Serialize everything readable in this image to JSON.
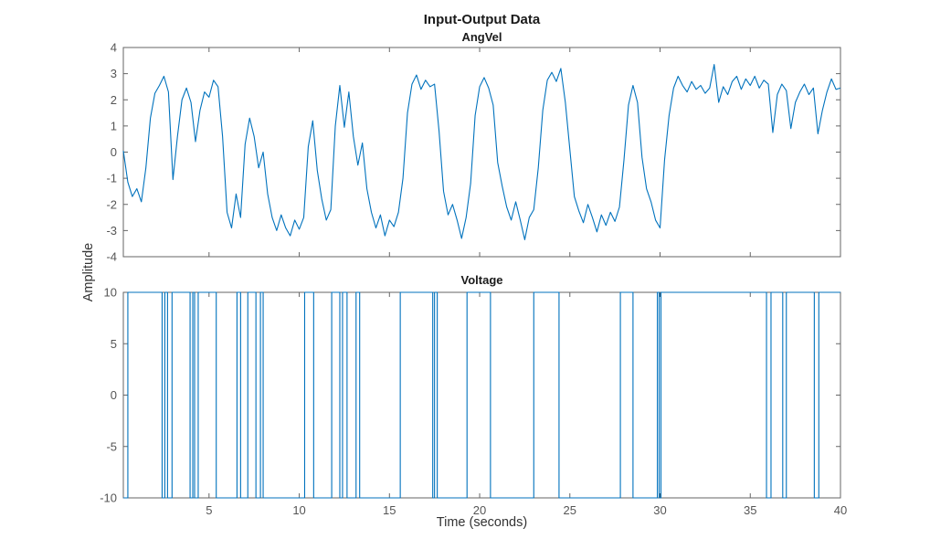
{
  "figure": {
    "title": "Input-Output Data",
    "xlabel": "Time (seconds)",
    "ylabel": "Amplitude",
    "line_color": "#0072BD",
    "axis_color": "#666666",
    "tick_label_color": "#555555"
  },
  "chart_data": [
    {
      "type": "line",
      "title": "AngVel",
      "xlim": [
        0.25,
        40
      ],
      "ylim": [
        -4,
        4
      ],
      "xticks": [
        5,
        10,
        15,
        20,
        25,
        30,
        35,
        40
      ],
      "yticks": [
        -4,
        -3,
        -2,
        -1,
        0,
        1,
        2,
        3,
        4
      ],
      "show_xtick_labels": false,
      "grid": false,
      "series": [
        {
          "name": "AngVel",
          "t0": 0.25,
          "dt": 0.25,
          "values": [
            0.05,
            -1.15,
            -1.7,
            -1.4,
            -1.9,
            -0.6,
            1.3,
            2.25,
            2.55,
            2.9,
            2.3,
            -1.05,
            0.6,
            2.0,
            2.45,
            1.9,
            0.4,
            1.6,
            2.3,
            2.1,
            2.75,
            2.5,
            0.6,
            -2.3,
            -2.9,
            -1.6,
            -2.5,
            0.3,
            1.3,
            0.6,
            -0.6,
            0.0,
            -1.6,
            -2.5,
            -3.0,
            -2.4,
            -2.9,
            -3.2,
            -2.6,
            -2.95,
            -2.5,
            0.2,
            1.2,
            -0.7,
            -1.8,
            -2.6,
            -2.2,
            1.0,
            2.55,
            0.95,
            2.3,
            0.6,
            -0.5,
            0.35,
            -1.4,
            -2.3,
            -2.9,
            -2.4,
            -3.2,
            -2.6,
            -2.85,
            -2.3,
            -1.0,
            1.5,
            2.6,
            2.95,
            2.4,
            2.75,
            2.5,
            2.6,
            0.8,
            -1.5,
            -2.4,
            -2.0,
            -2.6,
            -3.3,
            -2.5,
            -1.2,
            1.4,
            2.5,
            2.85,
            2.45,
            1.8,
            -0.4,
            -1.3,
            -2.1,
            -2.6,
            -1.9,
            -2.6,
            -3.35,
            -2.5,
            -2.2,
            -0.6,
            1.6,
            2.75,
            3.05,
            2.7,
            3.2,
            1.9,
            0.1,
            -1.7,
            -2.25,
            -2.7,
            -2.0,
            -2.5,
            -3.05,
            -2.4,
            -2.8,
            -2.3,
            -2.65,
            -2.1,
            -0.3,
            1.8,
            2.55,
            1.9,
            -0.2,
            -1.4,
            -1.9,
            -2.6,
            -2.9,
            -0.3,
            1.4,
            2.45,
            2.9,
            2.55,
            2.3,
            2.7,
            2.4,
            2.55,
            2.25,
            2.45,
            3.35,
            1.9,
            2.5,
            2.2,
            2.7,
            2.9,
            2.4,
            2.8,
            2.55,
            2.9,
            2.45,
            2.75,
            2.6,
            0.75,
            2.2,
            2.6,
            2.35,
            0.9,
            1.9,
            2.3,
            2.6,
            2.2,
            2.45,
            0.7,
            1.6,
            2.3,
            2.8,
            2.4,
            2.45
          ]
        }
      ]
    },
    {
      "type": "step",
      "title": "Voltage",
      "xlim": [
        0.25,
        40
      ],
      "ylim": [
        -10,
        10
      ],
      "xticks": [
        5,
        10,
        15,
        20,
        25,
        30,
        35,
        40
      ],
      "yticks": [
        -10,
        -5,
        0,
        5,
        10
      ],
      "show_xtick_labels": true,
      "grid": false,
      "series": [
        {
          "name": "Voltage",
          "t_end": 40,
          "transitions": [
            [
              0.25,
              -10
            ],
            [
              0.5,
              10
            ],
            [
              2.4,
              -10
            ],
            [
              2.55,
              10
            ],
            [
              2.7,
              -10
            ],
            [
              2.95,
              10
            ],
            [
              3.95,
              -10
            ],
            [
              4.1,
              10
            ],
            [
              4.2,
              -10
            ],
            [
              4.4,
              10
            ],
            [
              5.4,
              -10
            ],
            [
              6.55,
              10
            ],
            [
              6.75,
              -10
            ],
            [
              7.15,
              10
            ],
            [
              7.6,
              -10
            ],
            [
              7.85,
              10
            ],
            [
              8.0,
              -10
            ],
            [
              10.3,
              10
            ],
            [
              10.8,
              -10
            ],
            [
              11.8,
              10
            ],
            [
              12.25,
              -10
            ],
            [
              12.4,
              10
            ],
            [
              12.65,
              -10
            ],
            [
              13.15,
              10
            ],
            [
              13.35,
              -10
            ],
            [
              15.6,
              10
            ],
            [
              17.4,
              -10
            ],
            [
              17.5,
              10
            ],
            [
              17.65,
              -10
            ],
            [
              19.3,
              10
            ],
            [
              20.6,
              -10
            ],
            [
              23.0,
              10
            ],
            [
              24.4,
              -10
            ],
            [
              27.8,
              10
            ],
            [
              28.5,
              -10
            ],
            [
              29.85,
              10
            ],
            [
              29.95,
              -10
            ],
            [
              30.05,
              10
            ],
            [
              35.9,
              -10
            ],
            [
              36.15,
              10
            ],
            [
              36.8,
              -10
            ],
            [
              37.0,
              10
            ],
            [
              38.55,
              -10
            ],
            [
              38.8,
              10
            ]
          ]
        }
      ]
    }
  ]
}
